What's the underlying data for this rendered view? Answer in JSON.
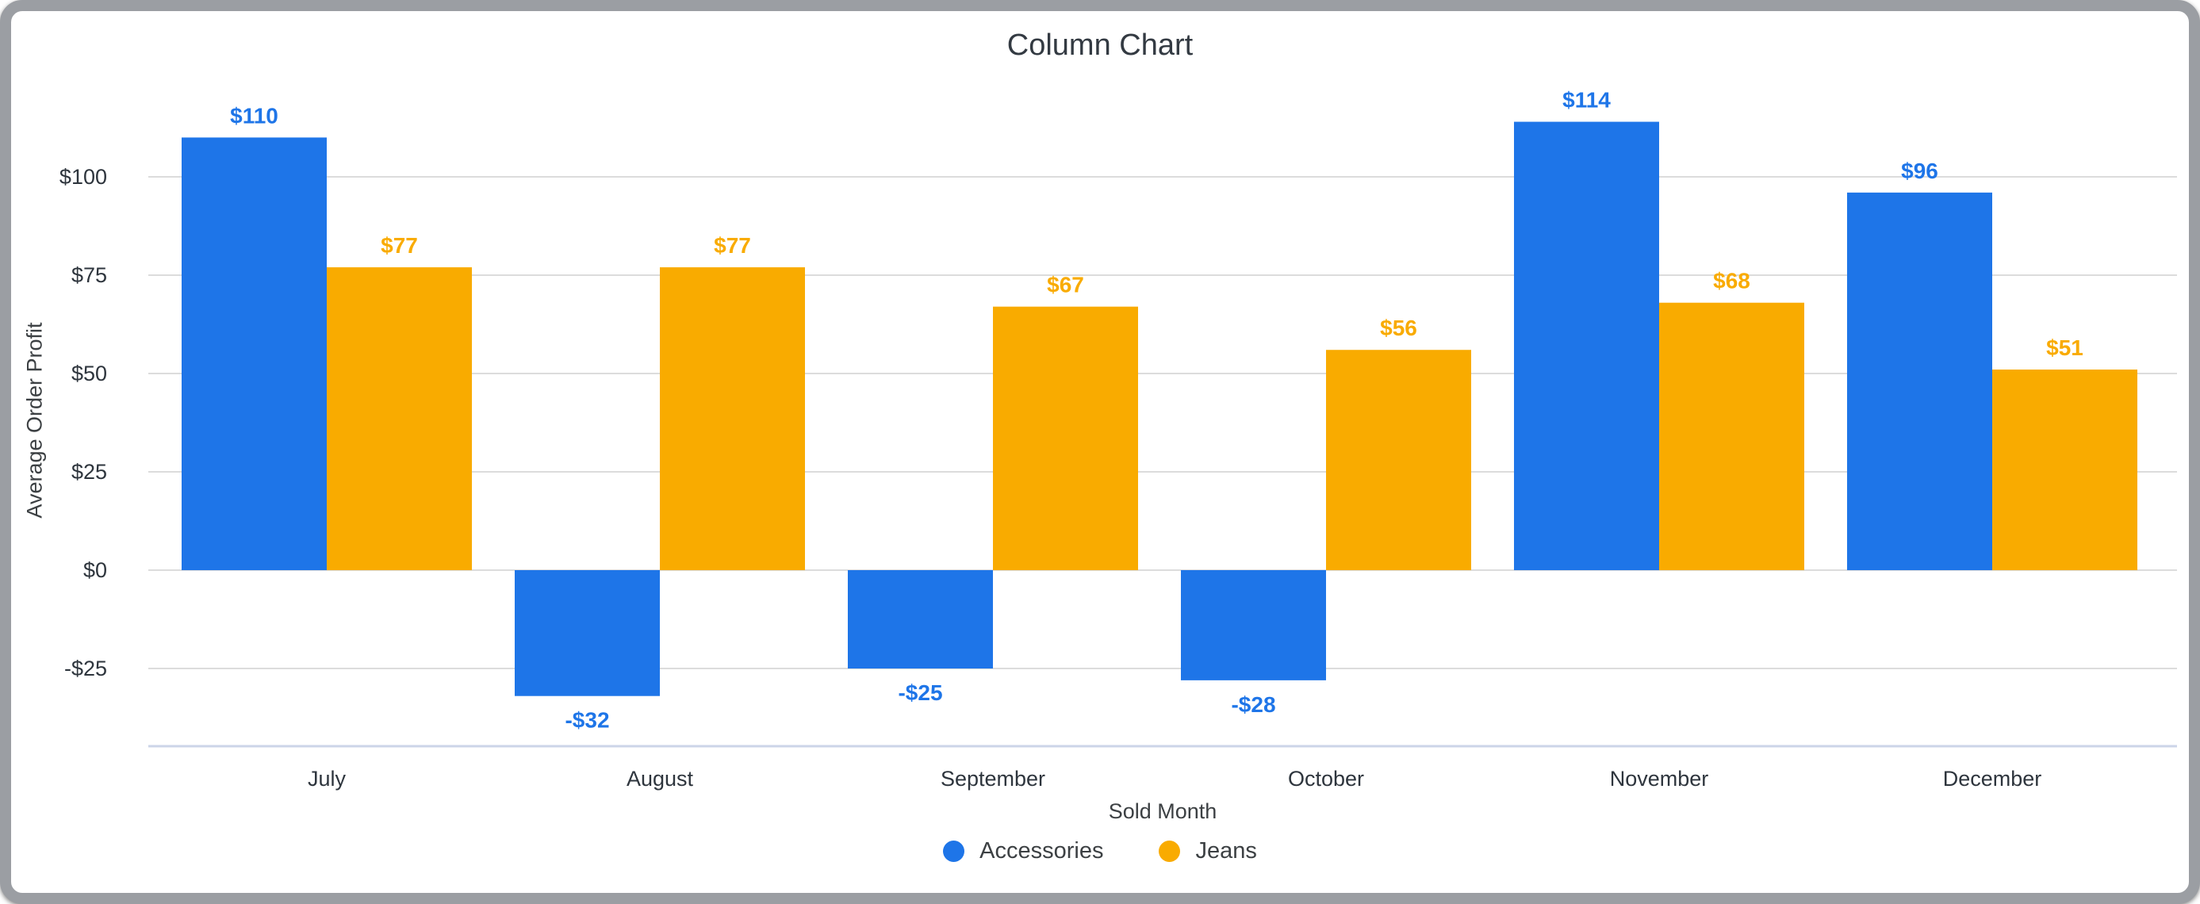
{
  "chart_data": {
    "type": "bar",
    "title": "Column Chart",
    "xlabel": "Sold Month",
    "ylabel": "Average Order Profit",
    "categories": [
      "July",
      "August",
      "September",
      "October",
      "November",
      "December"
    ],
    "series": [
      {
        "name": "Accessories",
        "color": "#1E75E8",
        "values": [
          110,
          -32,
          -25,
          -28,
          114,
          96
        ],
        "labels": [
          "$110",
          "-$32",
          "-$25",
          "-$28",
          "$114",
          "$96"
        ]
      },
      {
        "name": "Jeans",
        "color": "#F9AB00",
        "values": [
          77,
          77,
          67,
          56,
          68,
          51
        ],
        "labels": [
          "$77",
          "$77",
          "$67",
          "$56",
          "$68",
          "$51"
        ]
      }
    ],
    "y_ticks": [
      {
        "value": 100,
        "label": "$100"
      },
      {
        "value": 75,
        "label": "$75"
      },
      {
        "value": 50,
        "label": "$50"
      },
      {
        "value": 25,
        "label": "$25"
      },
      {
        "value": 0,
        "label": "$0"
      },
      {
        "value": -25,
        "label": "-$25"
      }
    ],
    "ylim": [
      -45,
      121
    ],
    "grid": true,
    "legend_position": "bottom",
    "colors": {
      "grid_line": "#DCDCDC",
      "axis_base_line": "#CCD5E8",
      "tick_text": "#2E353D",
      "title_text": "#333A42",
      "axis_title_text": "#3C4043",
      "frame": "#9B9EA3",
      "background": "#FFFFFF"
    }
  }
}
